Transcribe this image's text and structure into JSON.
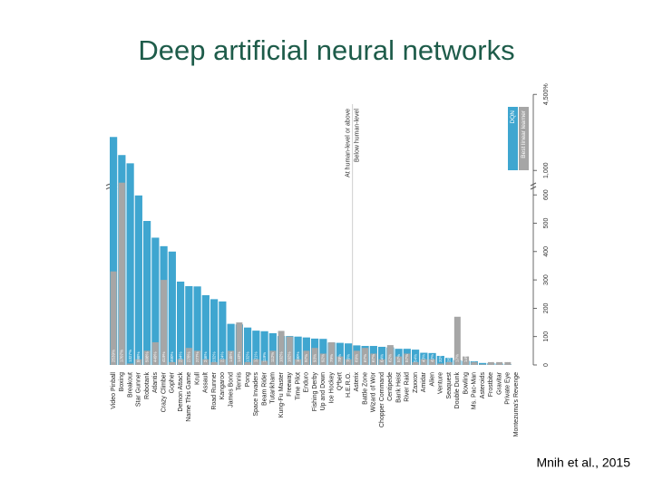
{
  "chart_data": {
    "type": "bar",
    "title": "Deep artificial neural networks",
    "footer": "Mnih et al., 2015",
    "annotations": [
      "At human-level or above",
      "Below human-level"
    ],
    "categories": [
      "Video Pinball",
      "Boxing",
      "Breakout",
      "Star Gunner",
      "Robotank",
      "Atlantis",
      "Crazy Climber",
      "Gopher",
      "Demon Attack",
      "Name This Game",
      "Krull",
      "Assault",
      "Road Runner",
      "Kangaroo",
      "James Bond",
      "Tennis",
      "Pong",
      "Space Invaders",
      "Beam Rider",
      "Tutankham",
      "Kung-Fu Master",
      "Freeway",
      "Time Pilot",
      "Enduro",
      "Fishing Derby",
      "Up and Down",
      "Ice Hockey",
      "Q*bert",
      "H.E.R.O.",
      "Asterix",
      "Battle Zone",
      "Wizard of Wor",
      "Chopper Command",
      "Centipede",
      "Bank Heist",
      "River Raid",
      "Zaxxon",
      "Amidar",
      "Alien",
      "Venture",
      "Seaquest",
      "Double Dunk",
      "Bowling",
      "Ms. Pac-Man",
      "Asteroids",
      "Frostbite",
      "Gravitar",
      "Private Eye",
      "Montezuma's Revenge"
    ],
    "series": [
      {
        "name": "DQN",
        "color": "#3fa6d0",
        "values": [
          2539,
          1707,
          1327,
          598,
          508,
          449,
          419,
          400,
          294,
          278,
          277,
          246,
          232,
          224,
          145,
          143,
          132,
          121,
          119,
          112,
          102,
          102,
          100,
          97,
          93,
          92,
          79,
          78,
          76,
          69,
          67,
          67,
          64,
          62,
          57,
          57,
          54,
          43,
          42,
          32,
          25,
          17,
          14,
          13,
          7,
          6,
          5,
          2,
          0
        ],
        "value_labels": [
          "2539%",
          "1707%",
          "1327%",
          "598%",
          "508%",
          "449%",
          "419%",
          "400%",
          "294%",
          "278%",
          "277%",
          "246%",
          "232%",
          "224%",
          "145%",
          "143%",
          "132%",
          "121%",
          "119%",
          "112%",
          "102%",
          "102%",
          "100%",
          "97%",
          "93%",
          "92%",
          "79%",
          "78%",
          "76%",
          "69%",
          "67%",
          "67%",
          "64%",
          "62%",
          "57%",
          "57%",
          "54%",
          "43%",
          "42%",
          "32%",
          "25%",
          "17%",
          "14%",
          "13%",
          "7%",
          "6%",
          "5%",
          "2%",
          "0%"
        ]
      },
      {
        "name": "Best linear learner",
        "color": "#a6a6a6",
        "values": [
          330,
          800,
          5,
          20,
          50,
          80,
          300,
          10,
          20,
          60,
          50,
          20,
          10,
          20,
          50,
          150,
          10,
          20,
          15,
          50,
          120,
          100,
          20,
          50,
          60,
          40,
          80,
          30,
          20,
          50,
          60,
          40,
          20,
          70,
          30,
          40,
          10,
          20,
          20,
          5,
          10,
          170,
          30,
          10,
          2,
          10,
          10,
          10,
          0
        ]
      }
    ],
    "ylim": [
      0,
      4500
    ],
    "yticks": [
      0,
      100,
      200,
      300,
      400,
      500,
      600,
      {
        "value": 1000,
        "label": "1,000"
      },
      {
        "value": 4500,
        "label": "4,500%"
      }
    ],
    "human_level_count": 29
  }
}
